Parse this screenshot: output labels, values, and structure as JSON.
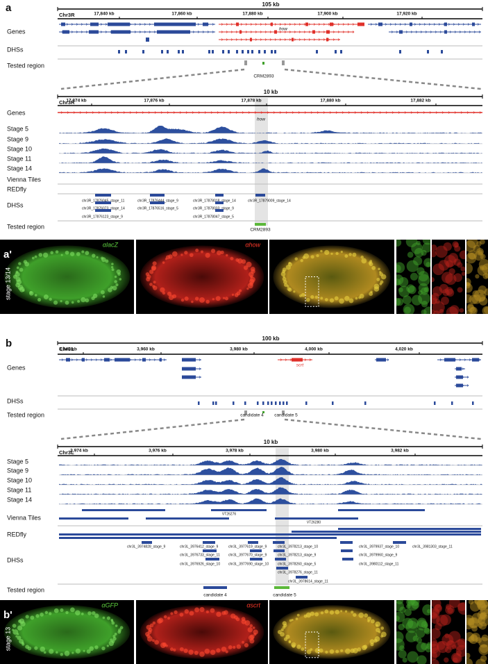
{
  "a": {
    "label": "a",
    "overview": {
      "scale": "105 kb",
      "chrom": "Chr3R",
      "ticks": [
        "17,840 kb",
        "17,860 kb",
        "17,880 kb",
        "17,900 kb",
        "17,920 kb"
      ],
      "tracks": [
        "Genes",
        "DHSs",
        "Tested region"
      ],
      "gene": "how",
      "region": "CRM2893"
    },
    "zoom": {
      "scale": "10 kb",
      "chrom": "Chr3R",
      "ticks": [
        "17,874 kb",
        "17,876 kb",
        "17,878 kb",
        "17,880 kb",
        "17,882 kb"
      ],
      "tracks": [
        "Genes",
        "Stage 5",
        "Stage 9",
        "Stage 10",
        "Stage 11",
        "Stage 14",
        "Vienna Tiles",
        "REDfly",
        "DHSs",
        "Tested region"
      ],
      "gene": "how",
      "dhs": [
        "chr3R_17876045_stage_11",
        "chr3R_17876073_stage_14",
        "chr3R_17876123_stage_9",
        "chr3R_17876444_stage_9",
        "chr3R_17876516_stage_5",
        "chr3R_17878018_stage_14",
        "chr3R_17878033_stage_9",
        "chr3R_17878047_stage_5",
        "chr3R_17879009_stage_14"
      ],
      "region": "CRM2893"
    }
  },
  "a_prime": {
    "label": "a'",
    "stains": [
      "αlacZ",
      "αhow"
    ],
    "stage": "stage 13/14"
  },
  "b": {
    "label": "b",
    "overview": {
      "scale": "100 kb",
      "chrom": "Chr3L",
      "ticks": [
        "3,940 kb",
        "3,960 kb",
        "3,980 kb",
        "4,000 kb",
        "4,020 kb"
      ],
      "tracks": [
        "Genes",
        "DHSs",
        "Tested region"
      ],
      "gene": "scrt",
      "regions": [
        "candidate 4",
        "candidate 5"
      ]
    },
    "zoom": {
      "scale": "10 kb",
      "chrom": "Chr3L",
      "ticks": [
        "3,974 kb",
        "3,976 kb",
        "3,978 kb",
        "3,980 kb",
        "3,982 kb"
      ],
      "tracks": [
        "Stage 5",
        "Stage 9",
        "Stage 10",
        "Stage 11",
        "Stage 14",
        "Vienna Tiles",
        "REDfly",
        "DHSs",
        "Tested region"
      ],
      "tiles": [
        "VT26276",
        "VT26280"
      ],
      "dhs": [
        "chr3L_3974828_stage_9",
        "chr3L_3976412_stage_9",
        "chr3L_3976733_stage_11",
        "chr3L_3976926_stage_10",
        "chr3L_3977619_stage_9",
        "chr3L_3977670_stage_9",
        "chr3L_3977690_stage_10",
        "chr3L_3978213_stage_10",
        "chr3L_3978213_stage_9",
        "chr3L_3978260_stage_5",
        "chr3L_3978276_stage_11",
        "chr3L_3978614_stage_11",
        "chr3L_3979937_stage_10",
        "chr3L_3979960_stage_9",
        "chr3L_3980112_stage_11",
        "chr3L_3981303_stage_11"
      ],
      "regions": [
        "candidate 4",
        "candidate 5"
      ]
    }
  },
  "b_prime": {
    "label": "b'",
    "stains": [
      "αGFP",
      "αscrt"
    ],
    "stage": "stage 13"
  }
}
